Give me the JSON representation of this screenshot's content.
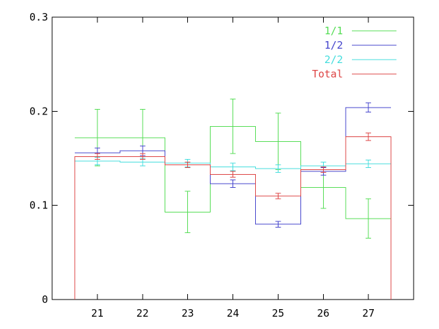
{
  "chart_data": {
    "type": "step",
    "title": "",
    "xlabel": "",
    "ylabel": "",
    "x_categories": [
      "21",
      "22",
      "23",
      "24",
      "25",
      "26",
      "27"
    ],
    "x_range": [
      20.0,
      28.0
    ],
    "ylim": [
      0,
      0.3
    ],
    "y_ticks": [
      {
        "value": 0,
        "label": "0"
      },
      {
        "value": 0.1,
        "label": "0.1"
      },
      {
        "value": 0.2,
        "label": "0.2"
      },
      {
        "value": 0.3,
        "label": "0.3"
      }
    ],
    "grid": false,
    "legend_position": "top-right",
    "series": [
      {
        "name": "1/1",
        "color": "#55dd55",
        "values": [
          0.172,
          0.172,
          0.093,
          0.184,
          0.168,
          0.119,
          0.086
        ],
        "errors": [
          0.03,
          0.03,
          0.022,
          0.029,
          0.03,
          0.022,
          0.021
        ]
      },
      {
        "name": "1/2",
        "color": "#4444cc",
        "values": [
          0.156,
          0.158,
          0.145,
          0.123,
          0.08,
          0.136,
          0.204
        ],
        "errors": [
          0.005,
          0.005,
          0.004,
          0.004,
          0.003,
          0.004,
          0.005
        ]
      },
      {
        "name": "2/2",
        "color": "#44dddd",
        "values": [
          0.147,
          0.146,
          0.145,
          0.141,
          0.139,
          0.142,
          0.144
        ],
        "errors": [
          0.004,
          0.004,
          0.004,
          0.004,
          0.004,
          0.004,
          0.004
        ]
      },
      {
        "name": "Total",
        "color": "#dd4444",
        "values": [
          0.152,
          0.152,
          0.143,
          0.133,
          0.11,
          0.138,
          0.173
        ],
        "errors": [
          0.003,
          0.003,
          0.003,
          0.003,
          0.003,
          0.003,
          0.004
        ],
        "drop_to_zero_at_edges": true
      }
    ]
  }
}
